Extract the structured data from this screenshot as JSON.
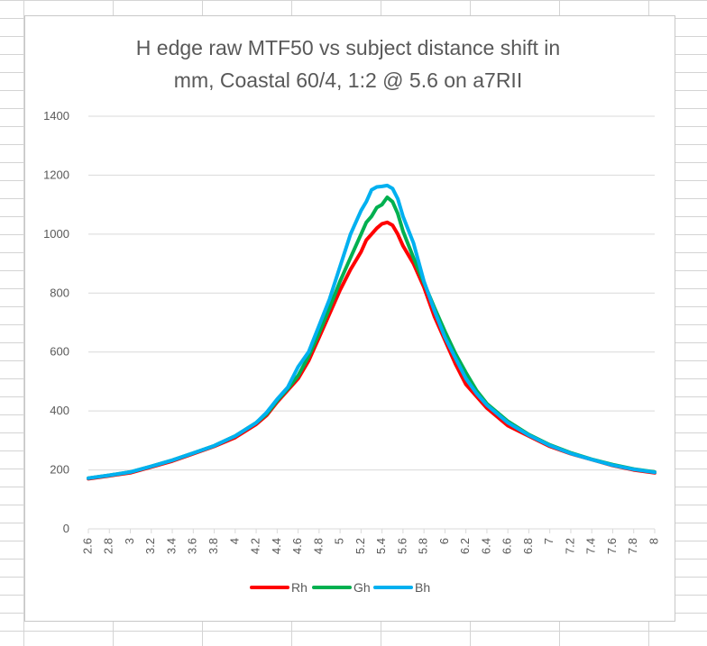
{
  "chart_data": {
    "type": "line",
    "title": [
      "H edge raw MTF50 vs subject distance shift in",
      "mm, Coastal 60/4, 1:2 @ 5.6 on a7RII"
    ],
    "xlabel": "",
    "ylabel": "",
    "xlim": [
      2.6,
      8.0
    ],
    "ylim": [
      0,
      1400
    ],
    "yticks": [
      0,
      200,
      400,
      600,
      800,
      1000,
      1200,
      1400
    ],
    "xticks": [
      2.6,
      2.8,
      3,
      3.2,
      3.4,
      3.6,
      3.8,
      4,
      4.2,
      4.4,
      4.6,
      4.8,
      5,
      5.2,
      5.4,
      5.6,
      5.8,
      6,
      6.2,
      6.4,
      6.6,
      6.8,
      7,
      7.2,
      7.4,
      7.6,
      7.8,
      8
    ],
    "xtick_labels": [
      "2.6",
      "2.8",
      "3",
      "3.2",
      "3.4",
      "3.6",
      "3.8",
      "4",
      "4.2",
      "4.4",
      "4.6",
      "4.8",
      "5",
      "5.2",
      "5.4",
      "5.6",
      "5.8",
      "6",
      "6.2",
      "6.4",
      "6.6",
      "6.8",
      "7",
      "7.2",
      "7.4",
      "7.6",
      "7.8",
      "8"
    ],
    "grid": true,
    "legend_position": "bottom",
    "x": [
      2.6,
      2.8,
      3.0,
      3.2,
      3.4,
      3.6,
      3.8,
      4.0,
      4.2,
      4.3,
      4.4,
      4.5,
      4.6,
      4.7,
      4.8,
      4.9,
      5.0,
      5.1,
      5.2,
      5.25,
      5.3,
      5.35,
      5.4,
      5.45,
      5.5,
      5.55,
      5.6,
      5.7,
      5.8,
      5.9,
      6.0,
      6.1,
      6.2,
      6.3,
      6.4,
      6.6,
      6.8,
      7.0,
      7.2,
      7.4,
      7.6,
      7.8,
      8.0
    ],
    "series": [
      {
        "name": "Rh",
        "color": "#ff0000",
        "values": [
          170,
          180,
          190,
          210,
          230,
          255,
          280,
          310,
          355,
          385,
          430,
          470,
          510,
          570,
          650,
          730,
          810,
          880,
          940,
          980,
          1000,
          1020,
          1035,
          1040,
          1030,
          1000,
          960,
          900,
          820,
          720,
          640,
          560,
          490,
          450,
          410,
          350,
          315,
          280,
          255,
          235,
          215,
          200,
          190
        ]
      },
      {
        "name": "Gh",
        "color": "#00b050",
        "values": [
          172,
          182,
          193,
          212,
          233,
          257,
          282,
          315,
          360,
          390,
          435,
          475,
          520,
          585,
          665,
          750,
          840,
          920,
          1000,
          1040,
          1060,
          1090,
          1100,
          1125,
          1110,
          1070,
          1010,
          920,
          835,
          750,
          670,
          595,
          530,
          470,
          425,
          365,
          320,
          285,
          258,
          236,
          218,
          203,
          193
        ]
      },
      {
        "name": "Bh",
        "color": "#00b0f0",
        "values": [
          172,
          182,
          193,
          212,
          233,
          257,
          282,
          315,
          360,
          395,
          440,
          480,
          550,
          600,
          690,
          780,
          890,
          1000,
          1080,
          1110,
          1150,
          1160,
          1162,
          1165,
          1155,
          1120,
          1060,
          970,
          840,
          740,
          650,
          580,
          510,
          460,
          420,
          360,
          318,
          283,
          256,
          235,
          216,
          202,
          192
        ]
      }
    ]
  }
}
